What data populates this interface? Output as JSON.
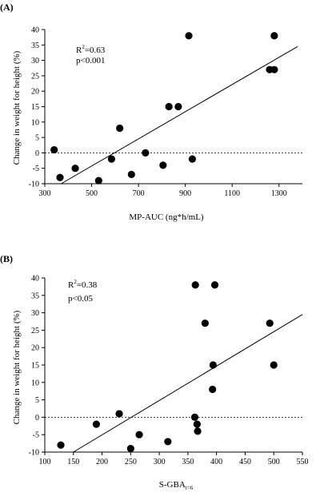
{
  "chart_data": [
    {
      "type": "scatter",
      "panel": "(A)",
      "title": "",
      "xlabel": "MP-AUC (ng*h/mL)",
      "ylabel": "Change in weight for height (%)",
      "xlim": [
        300,
        1400
      ],
      "ylim": [
        -10,
        40
      ],
      "xticks": [
        300,
        500,
        700,
        900,
        1100,
        1300
      ],
      "yticks": [
        -10,
        -5,
        0,
        5,
        10,
        15,
        20,
        25,
        30,
        35,
        40
      ],
      "stats": {
        "r2_base": "R",
        "r2_sup": "2",
        "r2_value": "=0.63",
        "p": "p<0.001"
      },
      "reference_line_y": 0,
      "fit_line": [
        [
          370,
          -10
        ],
        [
          1380,
          34.5
        ]
      ],
      "grid": false,
      "points": [
        {
          "x": 340,
          "y": 1
        },
        {
          "x": 365,
          "y": -8
        },
        {
          "x": 430,
          "y": -5
        },
        {
          "x": 530,
          "y": -9
        },
        {
          "x": 585,
          "y": -2
        },
        {
          "x": 620,
          "y": 8
        },
        {
          "x": 670,
          "y": -7
        },
        {
          "x": 730,
          "y": 0
        },
        {
          "x": 805,
          "y": -4
        },
        {
          "x": 830,
          "y": 15
        },
        {
          "x": 870,
          "y": 15
        },
        {
          "x": 915,
          "y": 38
        },
        {
          "x": 930,
          "y": -2
        },
        {
          "x": 1260,
          "y": 27
        },
        {
          "x": 1280,
          "y": 27
        },
        {
          "x": 1280,
          "y": 38
        }
      ]
    },
    {
      "type": "scatter",
      "panel": "(B)",
      "title": "",
      "xlabel_base": "S-GBA",
      "xlabel_sub": "t=6",
      "ylabel": "Change in weight for height (%)",
      "xlim": [
        100,
        550
      ],
      "ylim": [
        -10,
        40
      ],
      "xticks": [
        100,
        150,
        200,
        250,
        300,
        350,
        400,
        450,
        500,
        550
      ],
      "yticks": [
        -10,
        -5,
        0,
        5,
        10,
        15,
        20,
        25,
        30,
        35,
        40
      ],
      "stats": {
        "r2_base": "R",
        "r2_sup": "2",
        "r2_value": "=0.38",
        "p": "p<0.05"
      },
      "reference_line_y": 0,
      "fit_line": [
        [
          150,
          -10
        ],
        [
          550,
          29.5
        ]
      ],
      "grid": false,
      "points": [
        {
          "x": 128,
          "y": -8
        },
        {
          "x": 190,
          "y": -2
        },
        {
          "x": 230,
          "y": 1
        },
        {
          "x": 250,
          "y": -9
        },
        {
          "x": 265,
          "y": -5
        },
        {
          "x": 315,
          "y": -7
        },
        {
          "x": 362,
          "y": 0
        },
        {
          "x": 363,
          "y": 38
        },
        {
          "x": 366,
          "y": -2
        },
        {
          "x": 367,
          "y": -4
        },
        {
          "x": 380,
          "y": 27
        },
        {
          "x": 393,
          "y": 8
        },
        {
          "x": 394,
          "y": 15
        },
        {
          "x": 397,
          "y": 38
        },
        {
          "x": 493,
          "y": 27
        },
        {
          "x": 500,
          "y": 15
        }
      ]
    }
  ]
}
